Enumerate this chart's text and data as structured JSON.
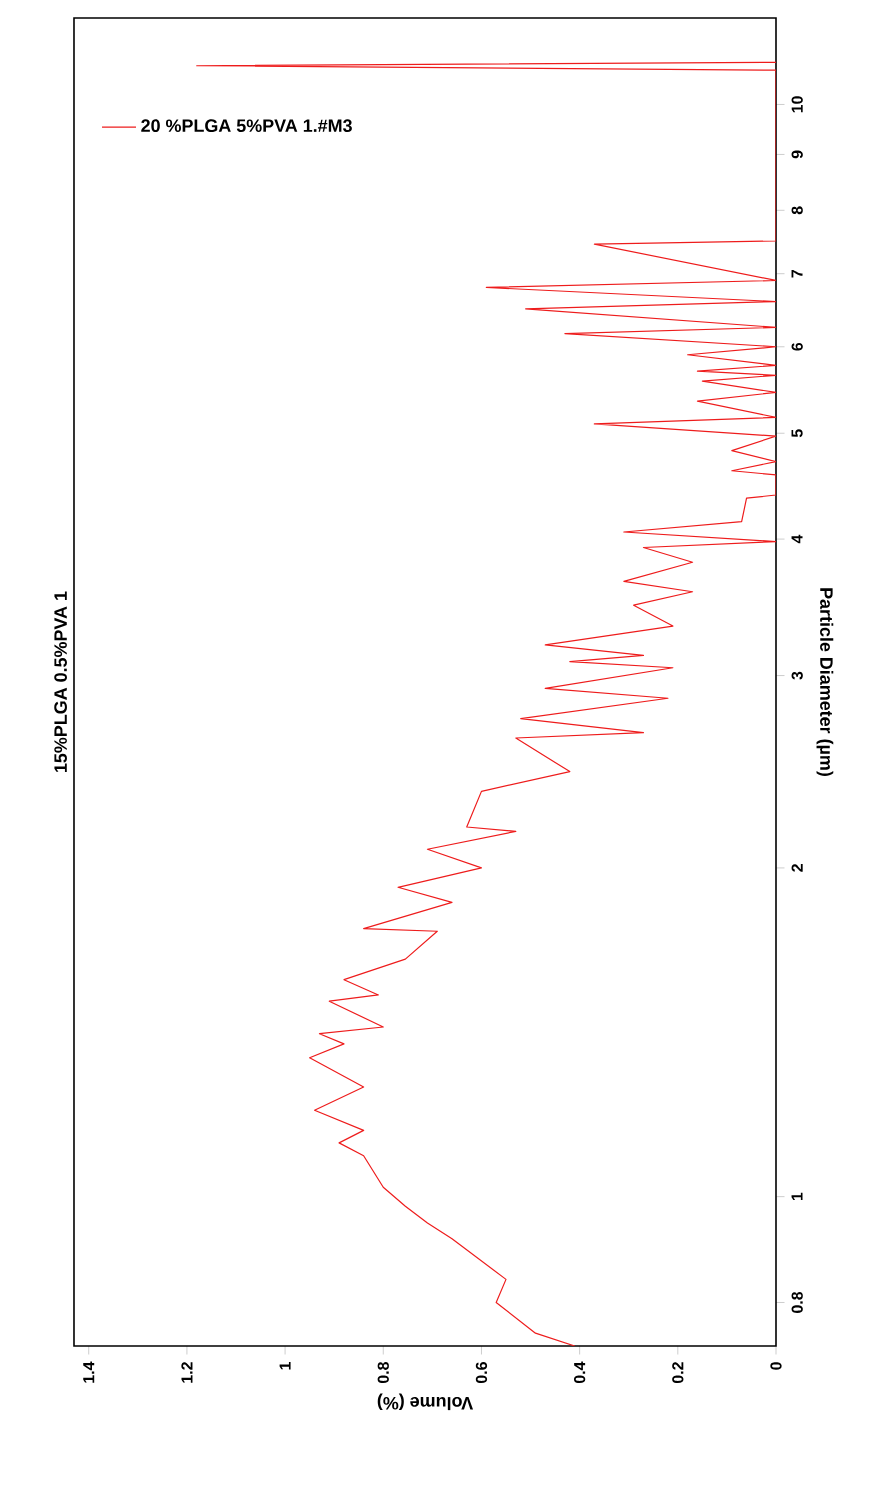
{
  "chart_data": {
    "type": "line",
    "title": "15%PLGA 0.5%PVA 1",
    "xlabel": "Volume (%)",
    "ylabel": "Particle Diameter (µm)",
    "log": "y",
    "legend": "top left",
    "xlim": [
      1.43,
      0
    ],
    "ylim": [
      0.73,
      12
    ],
    "xticks": [
      1.4,
      1.2,
      1,
      0.8,
      0.6,
      0.4,
      0.2,
      0
    ],
    "yticks": [
      0.8,
      1,
      2,
      3,
      4,
      5,
      6,
      7,
      8,
      9,
      10
    ],
    "x": [
      0.41,
      0.49,
      0.57,
      0.55,
      0.66,
      0.71,
      0.755,
      0.8,
      0.84,
      0.89,
      0.84,
      0.94,
      0.84,
      0.95,
      0.88,
      0.93,
      0.8,
      0.91,
      0.81,
      0.88,
      0.755,
      0.69,
      0.84,
      0.66,
      0.77,
      0.6,
      0.71,
      0.53,
      0.63,
      0.6,
      0.42,
      0.53,
      0.27,
      0.52,
      0.22,
      0.47,
      0.21,
      0.42,
      0.27,
      0.47,
      0.21,
      0.29,
      0.17,
      0.31,
      0.17,
      0.27,
      0.0,
      0.31,
      0.07,
      0.06,
      0.0,
      0.0,
      0.09,
      0.0,
      0.09,
      0.0,
      0.37,
      0.0,
      0.16,
      0.0,
      0.15,
      0.0,
      0.16,
      0.0,
      0.18,
      0.0,
      0.43,
      0.0,
      0.51,
      0.0,
      0.59,
      0.0,
      0.37,
      0.0,
      0.0,
      1.18,
      0.0
    ],
    "series": [
      {
        "name": "20 %PLGA 5%PVA 1.#M3",
        "color": "#ee1c1c",
        "values": [
          0.73,
          0.75,
          0.8,
          0.84,
          0.915,
          0.946,
          0.98,
          1.02,
          1.09,
          1.12,
          1.15,
          1.2,
          1.26,
          1.34,
          1.38,
          1.41,
          1.43,
          1.51,
          1.53,
          1.58,
          1.65,
          1.75,
          1.76,
          1.86,
          1.92,
          2.0,
          2.08,
          2.16,
          2.18,
          2.35,
          2.45,
          2.63,
          2.66,
          2.74,
          2.86,
          2.92,
          3.05,
          3.09,
          3.13,
          3.2,
          3.33,
          3.48,
          3.58,
          3.66,
          3.81,
          3.93,
          3.98,
          4.06,
          4.15,
          4.36,
          4.39,
          4.58,
          4.62,
          4.71,
          4.82,
          4.97,
          5.1,
          5.17,
          5.35,
          5.45,
          5.58,
          5.65,
          5.7,
          5.77,
          5.9,
          6.0,
          6.17,
          6.25,
          6.5,
          6.6,
          6.8,
          6.9,
          7.45,
          7.5,
          10.75,
          10.85,
          10.93
        ]
      }
    ]
  }
}
